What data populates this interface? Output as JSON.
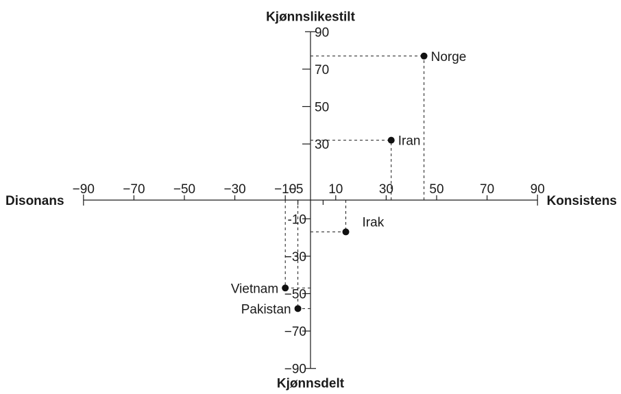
{
  "chart_data": {
    "type": "scatter",
    "axis_titles": {
      "top": "Kjønnslikestilt",
      "bottom": "Kjønnsdelt",
      "left": "Disonans",
      "right": "Konsistens"
    },
    "xlim": [
      -90,
      90
    ],
    "ylim": [
      -90,
      90
    ],
    "x_ticks": [
      -90,
      -70,
      -50,
      -30,
      -10,
      10,
      30,
      50,
      70,
      90
    ],
    "x_tick_labels": [
      "−90",
      "−70",
      "−50",
      "−30",
      "−10",
      "10",
      "30",
      "50",
      "70",
      "90"
    ],
    "y_ticks": [
      90,
      70,
      50,
      30,
      -10,
      -30,
      -50,
      -70,
      -90
    ],
    "y_tick_labels": [
      "90",
      "70",
      "50",
      "30",
      "-10",
      "−30",
      "−50",
      "−70",
      "−90"
    ],
    "minor_x_ticks": [
      -5,
      5
    ],
    "minor_x_tick_labels": [
      "−5",
      ""
    ],
    "grid": false,
    "points": [
      {
        "name": "Norge",
        "x": 45,
        "y": 77
      },
      {
        "name": "Iran",
        "x": 32,
        "y": 32
      },
      {
        "name": "Irak",
        "x": 14,
        "y": -17
      },
      {
        "name": "Vietnam",
        "x": -10,
        "y": -47
      },
      {
        "name": "Pakistan",
        "x": -5,
        "y": -58
      }
    ]
  }
}
